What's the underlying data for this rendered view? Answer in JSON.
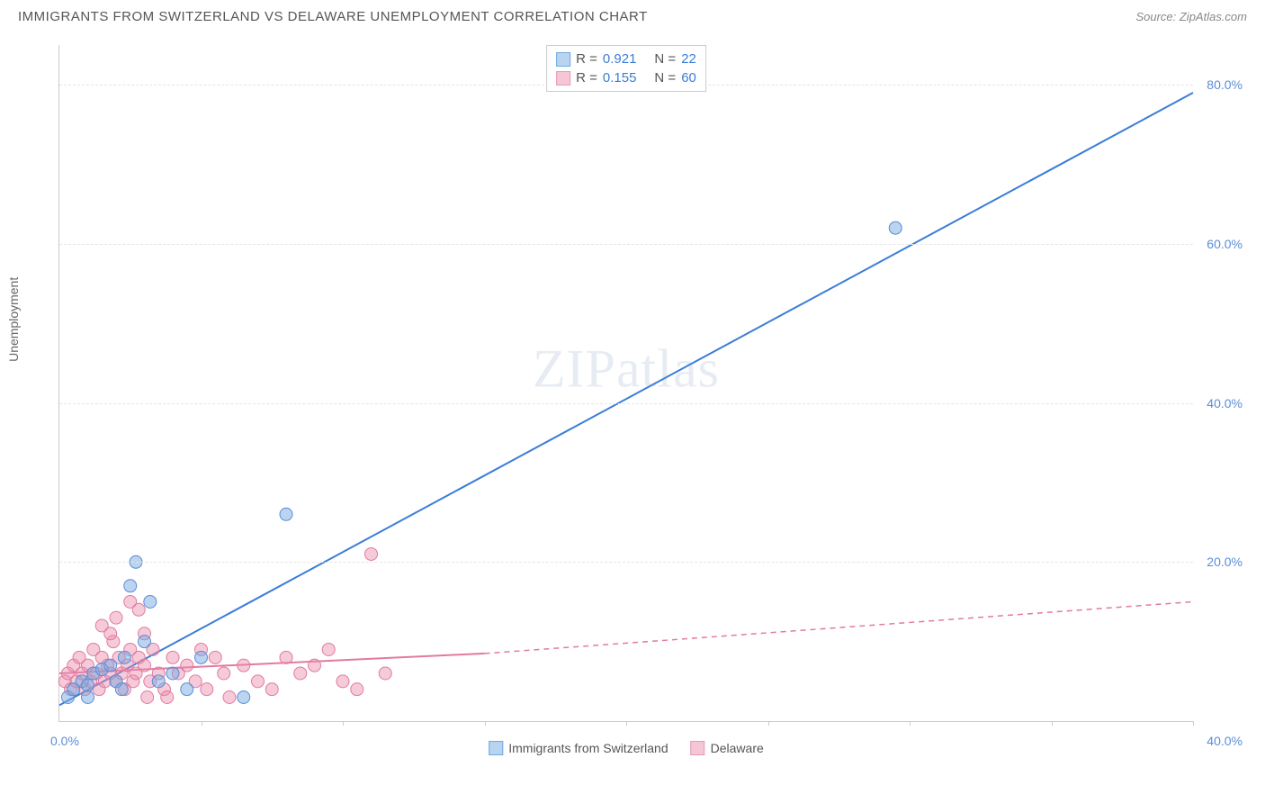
{
  "header": {
    "title": "IMMIGRANTS FROM SWITZERLAND VS DELAWARE UNEMPLOYMENT CORRELATION CHART",
    "source_prefix": "Source: ",
    "source_name": "ZipAtlas.com"
  },
  "chart": {
    "type": "scatter",
    "ylabel": "Unemployment",
    "watermark": "ZIPatlas",
    "xlim": [
      0,
      40
    ],
    "ylim": [
      0,
      85
    ],
    "ytick_labels": [
      "20.0%",
      "40.0%",
      "60.0%",
      "80.0%"
    ],
    "ytick_values": [
      20,
      40,
      60,
      80
    ],
    "xtick_origin": "0.0%",
    "xtick_max": "40.0%",
    "xtick_positions": [
      5,
      10,
      15,
      20,
      25,
      30,
      35,
      40
    ],
    "grid_color": "#e5e5e5",
    "axis_color": "#cccccc",
    "tick_label_color": "#5b8dd6",
    "background_color": "#ffffff",
    "marker_radius": 7,
    "marker_opacity": 0.55,
    "line_width": 2
  },
  "legend_top": {
    "rows": [
      {
        "swatch_fill": "#b8d4f0",
        "swatch_border": "#6fa8e0",
        "r_label": "R =",
        "r_value": "0.921",
        "n_label": "N =",
        "n_value": "22"
      },
      {
        "swatch_fill": "#f5c6d6",
        "swatch_border": "#e89ab5",
        "r_label": "R =",
        "r_value": "0.155",
        "n_label": "N =",
        "n_value": "60"
      }
    ]
  },
  "legend_bottom": {
    "items": [
      {
        "swatch_fill": "#b8d4f0",
        "swatch_border": "#6fa8e0",
        "label": "Immigrants from Switzerland"
      },
      {
        "swatch_fill": "#f5c6d6",
        "swatch_border": "#e89ab5",
        "label": "Delaware"
      }
    ]
  },
  "series": {
    "switzerland": {
      "color_fill": "rgba(120,170,225,0.5)",
      "color_stroke": "#5b8dd6",
      "line_color": "#3b7dd8",
      "points": [
        [
          0.3,
          3
        ],
        [
          0.5,
          4
        ],
        [
          0.8,
          5
        ],
        [
          1.0,
          4.5
        ],
        [
          1.2,
          6
        ],
        [
          1.5,
          6.5
        ],
        [
          1.8,
          7
        ],
        [
          2.0,
          5
        ],
        [
          2.3,
          8
        ],
        [
          2.5,
          17
        ],
        [
          2.7,
          20
        ],
        [
          3.0,
          10
        ],
        [
          3.2,
          15
        ],
        [
          4.0,
          6
        ],
        [
          4.5,
          4
        ],
        [
          5.0,
          8
        ],
        [
          6.5,
          3
        ],
        [
          8.0,
          26
        ],
        [
          3.5,
          5
        ],
        [
          2.2,
          4
        ],
        [
          29.5,
          62
        ],
        [
          1.0,
          3
        ]
      ],
      "trend_start": [
        0,
        2
      ],
      "trend_end": [
        40,
        79
      ]
    },
    "delaware": {
      "color_fill": "rgba(235,140,170,0.45)",
      "color_stroke": "#e27aa0",
      "line_color": "#e27aa0",
      "points": [
        [
          0.2,
          5
        ],
        [
          0.3,
          6
        ],
        [
          0.4,
          4
        ],
        [
          0.5,
          7
        ],
        [
          0.6,
          5
        ],
        [
          0.7,
          8
        ],
        [
          0.8,
          6
        ],
        [
          0.9,
          4
        ],
        [
          1.0,
          7
        ],
        [
          1.1,
          5
        ],
        [
          1.2,
          9
        ],
        [
          1.3,
          6
        ],
        [
          1.4,
          4
        ],
        [
          1.5,
          8
        ],
        [
          1.6,
          5
        ],
        [
          1.7,
          7
        ],
        [
          1.8,
          6
        ],
        [
          1.9,
          10
        ],
        [
          2.0,
          5
        ],
        [
          2.1,
          8
        ],
        [
          2.2,
          6
        ],
        [
          2.3,
          4
        ],
        [
          2.4,
          7
        ],
        [
          2.5,
          9
        ],
        [
          2.6,
          5
        ],
        [
          2.7,
          6
        ],
        [
          2.8,
          8
        ],
        [
          3.0,
          7
        ],
        [
          3.1,
          3
        ],
        [
          3.2,
          5
        ],
        [
          3.3,
          9
        ],
        [
          3.5,
          6
        ],
        [
          3.7,
          4
        ],
        [
          3.8,
          3
        ],
        [
          4.0,
          8
        ],
        [
          4.2,
          6
        ],
        [
          4.5,
          7
        ],
        [
          4.8,
          5
        ],
        [
          5.0,
          9
        ],
        [
          5.2,
          4
        ],
        [
          5.5,
          8
        ],
        [
          5.8,
          6
        ],
        [
          6.0,
          3
        ],
        [
          6.5,
          7
        ],
        [
          7.0,
          5
        ],
        [
          7.5,
          4
        ],
        [
          8.0,
          8
        ],
        [
          8.5,
          6
        ],
        [
          9.0,
          7
        ],
        [
          9.5,
          9
        ],
        [
          10.0,
          5
        ],
        [
          10.5,
          4
        ],
        [
          11.0,
          21
        ],
        [
          11.5,
          6
        ],
        [
          2.0,
          13
        ],
        [
          2.5,
          15
        ],
        [
          3.0,
          11
        ],
        [
          1.5,
          12
        ],
        [
          2.8,
          14
        ],
        [
          1.8,
          11
        ]
      ],
      "trend_solid_start": [
        0,
        6
      ],
      "trend_solid_end": [
        15,
        8.5
      ],
      "trend_dash_start": [
        15,
        8.5
      ],
      "trend_dash_end": [
        40,
        15
      ]
    }
  }
}
